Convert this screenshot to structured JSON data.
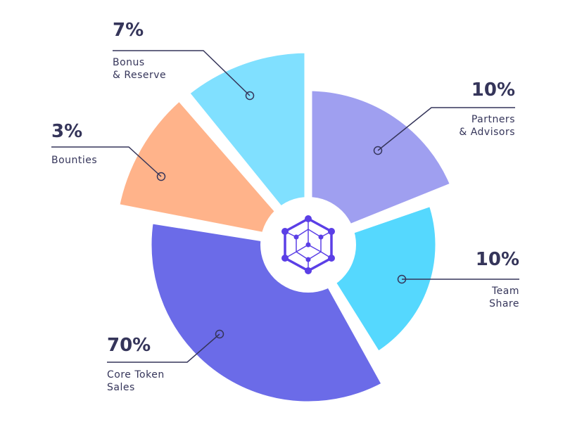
{
  "chart_data": {
    "type": "pie",
    "title": "",
    "slices": [
      {
        "label_lines": [
          "Partners",
          "& Advisors"
        ],
        "value": 10,
        "value_label": "10%",
        "color": "#9f9ff0"
      },
      {
        "label_lines": [
          "Team",
          "Share"
        ],
        "value": 10,
        "value_label": "10%",
        "color": "#55d8fe"
      },
      {
        "label_lines": [
          "Core Token",
          "Sales"
        ],
        "value": 70,
        "value_label": "70%",
        "color": "#6b6be8"
      },
      {
        "label_lines": [
          "Bounties"
        ],
        "value": 3,
        "value_label": "3%",
        "color": "#ffb38a"
      },
      {
        "label_lines": [
          "Bonus",
          "& Reserve"
        ],
        "value": 7,
        "value_label": "7%",
        "color": "#80e0ff"
      }
    ],
    "center_icon": "hexagon-cube-network-icon",
    "icon_color": "#5b3fe6",
    "text_color": "#35355a"
  }
}
